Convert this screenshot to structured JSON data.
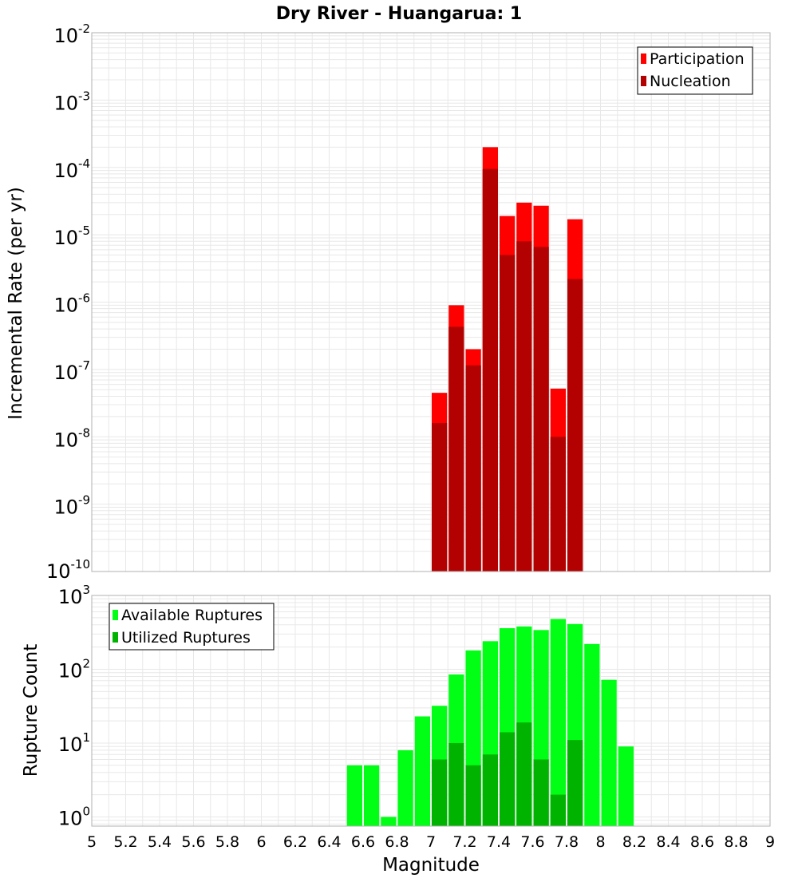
{
  "title": "Dry River - Huangarua: 1",
  "colors": {
    "participation": "#ff0000",
    "nucleation": "#b30000",
    "available": "#00ff14",
    "utilized": "#00b300",
    "grid": "#e8e8e8",
    "frame": "#b0b0b0"
  },
  "chart_data": [
    {
      "type": "bar",
      "scale": "log",
      "ylabel": "Incremental Rate (per yr)",
      "ylim_exp": [
        -10,
        -2
      ],
      "bin_width": 0.1,
      "grid": true,
      "legend_position": "top-right",
      "x": [
        7.0,
        7.1,
        7.2,
        7.3,
        7.4,
        7.5,
        7.6,
        7.7,
        7.8
      ],
      "series": [
        {
          "name": "Participation",
          "color": "#ff0000",
          "values": [
            4.5e-08,
            9e-07,
            2e-07,
            0.0002,
            1.9e-05,
            3e-05,
            2.7e-05,
            5.2e-08,
            1.7e-05
          ]
        },
        {
          "name": "Nucleation",
          "color": "#b30000",
          "values": [
            1.6e-08,
            4.3e-07,
            1.15e-07,
            9.5e-05,
            5e-06,
            8e-06,
            6.6e-06,
            1e-08,
            2.2e-06
          ]
        }
      ]
    },
    {
      "type": "bar",
      "scale": "log",
      "xlabel": "Magnitude",
      "ylabel": "Rupture Count",
      "ylim": [
        0.75,
        1000
      ],
      "tick_exps": [
        0,
        1,
        2,
        3
      ],
      "xlim": [
        5,
        9
      ],
      "xticks": [
        "5",
        "5.2",
        "5.4",
        "5.6",
        "5.8",
        "6",
        "6.2",
        "6.4",
        "6.6",
        "6.8",
        "7",
        "7.2",
        "7.4",
        "7.6",
        "7.8",
        "8",
        "8.2",
        "8.4",
        "8.6",
        "8.8",
        "9"
      ],
      "bin_width": 0.1,
      "grid": true,
      "legend_position": "top-left",
      "series": [
        {
          "name": "Available Ruptures",
          "color": "#00ff14",
          "x": [
            6.5,
            6.6,
            6.7,
            6.8,
            6.9,
            7.0,
            7.1,
            7.2,
            7.3,
            7.4,
            7.5,
            7.6,
            7.7,
            7.8,
            7.9,
            8.0,
            8.1
          ],
          "values": [
            5,
            5,
            1,
            8,
            23,
            32,
            85,
            180,
            240,
            360,
            380,
            340,
            480,
            410,
            220,
            72,
            9
          ]
        },
        {
          "name": "Utilized Ruptures",
          "color": "#00b300",
          "x": [
            7.0,
            7.1,
            7.2,
            7.3,
            7.4,
            7.5,
            7.6,
            7.7,
            7.8
          ],
          "values": [
            6,
            10,
            5,
            7,
            14,
            19,
            6,
            2,
            11
          ]
        }
      ]
    }
  ]
}
